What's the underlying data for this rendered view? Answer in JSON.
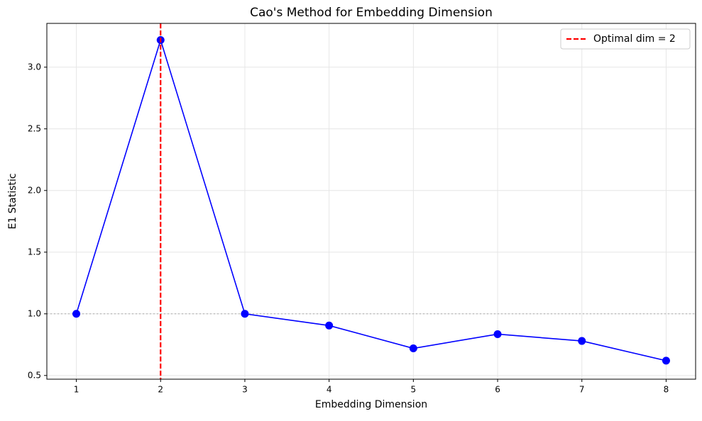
{
  "chart_data": {
    "type": "line",
    "title": "Cao's Method for Embedding Dimension",
    "x_label": "Embedding Dimension",
    "y_label": "E1 Statistic",
    "x": [
      1,
      2,
      3,
      4,
      5,
      6,
      7,
      8
    ],
    "series": [
      {
        "color": "#0000ff",
        "values": [
          1.0,
          3.22,
          1.0,
          0.905,
          0.72,
          0.835,
          0.78,
          0.62
        ]
      }
    ],
    "xlim": [
      0.65,
      8.35
    ],
    "ylim": [
      0.47,
      3.355
    ],
    "xticks": [
      1,
      2,
      3,
      4,
      5,
      6,
      7,
      8
    ],
    "yticks": [
      {
        "value": 0.5,
        "label": "0.5"
      },
      {
        "value": 1.0,
        "label": "1.0"
      },
      {
        "value": 1.5,
        "label": "1.5"
      },
      {
        "value": 2.0,
        "label": "2.0"
      },
      {
        "value": 2.5,
        "label": "2.5"
      },
      {
        "value": 3.0,
        "label": "3.0"
      }
    ],
    "vline": {
      "x": 2,
      "label": "Optimal dim = 2",
      "color": "#ff0000"
    },
    "hline": {
      "y": 1.0,
      "color": "#aaaaaa"
    },
    "grid": true,
    "legend": "upper-right"
  }
}
